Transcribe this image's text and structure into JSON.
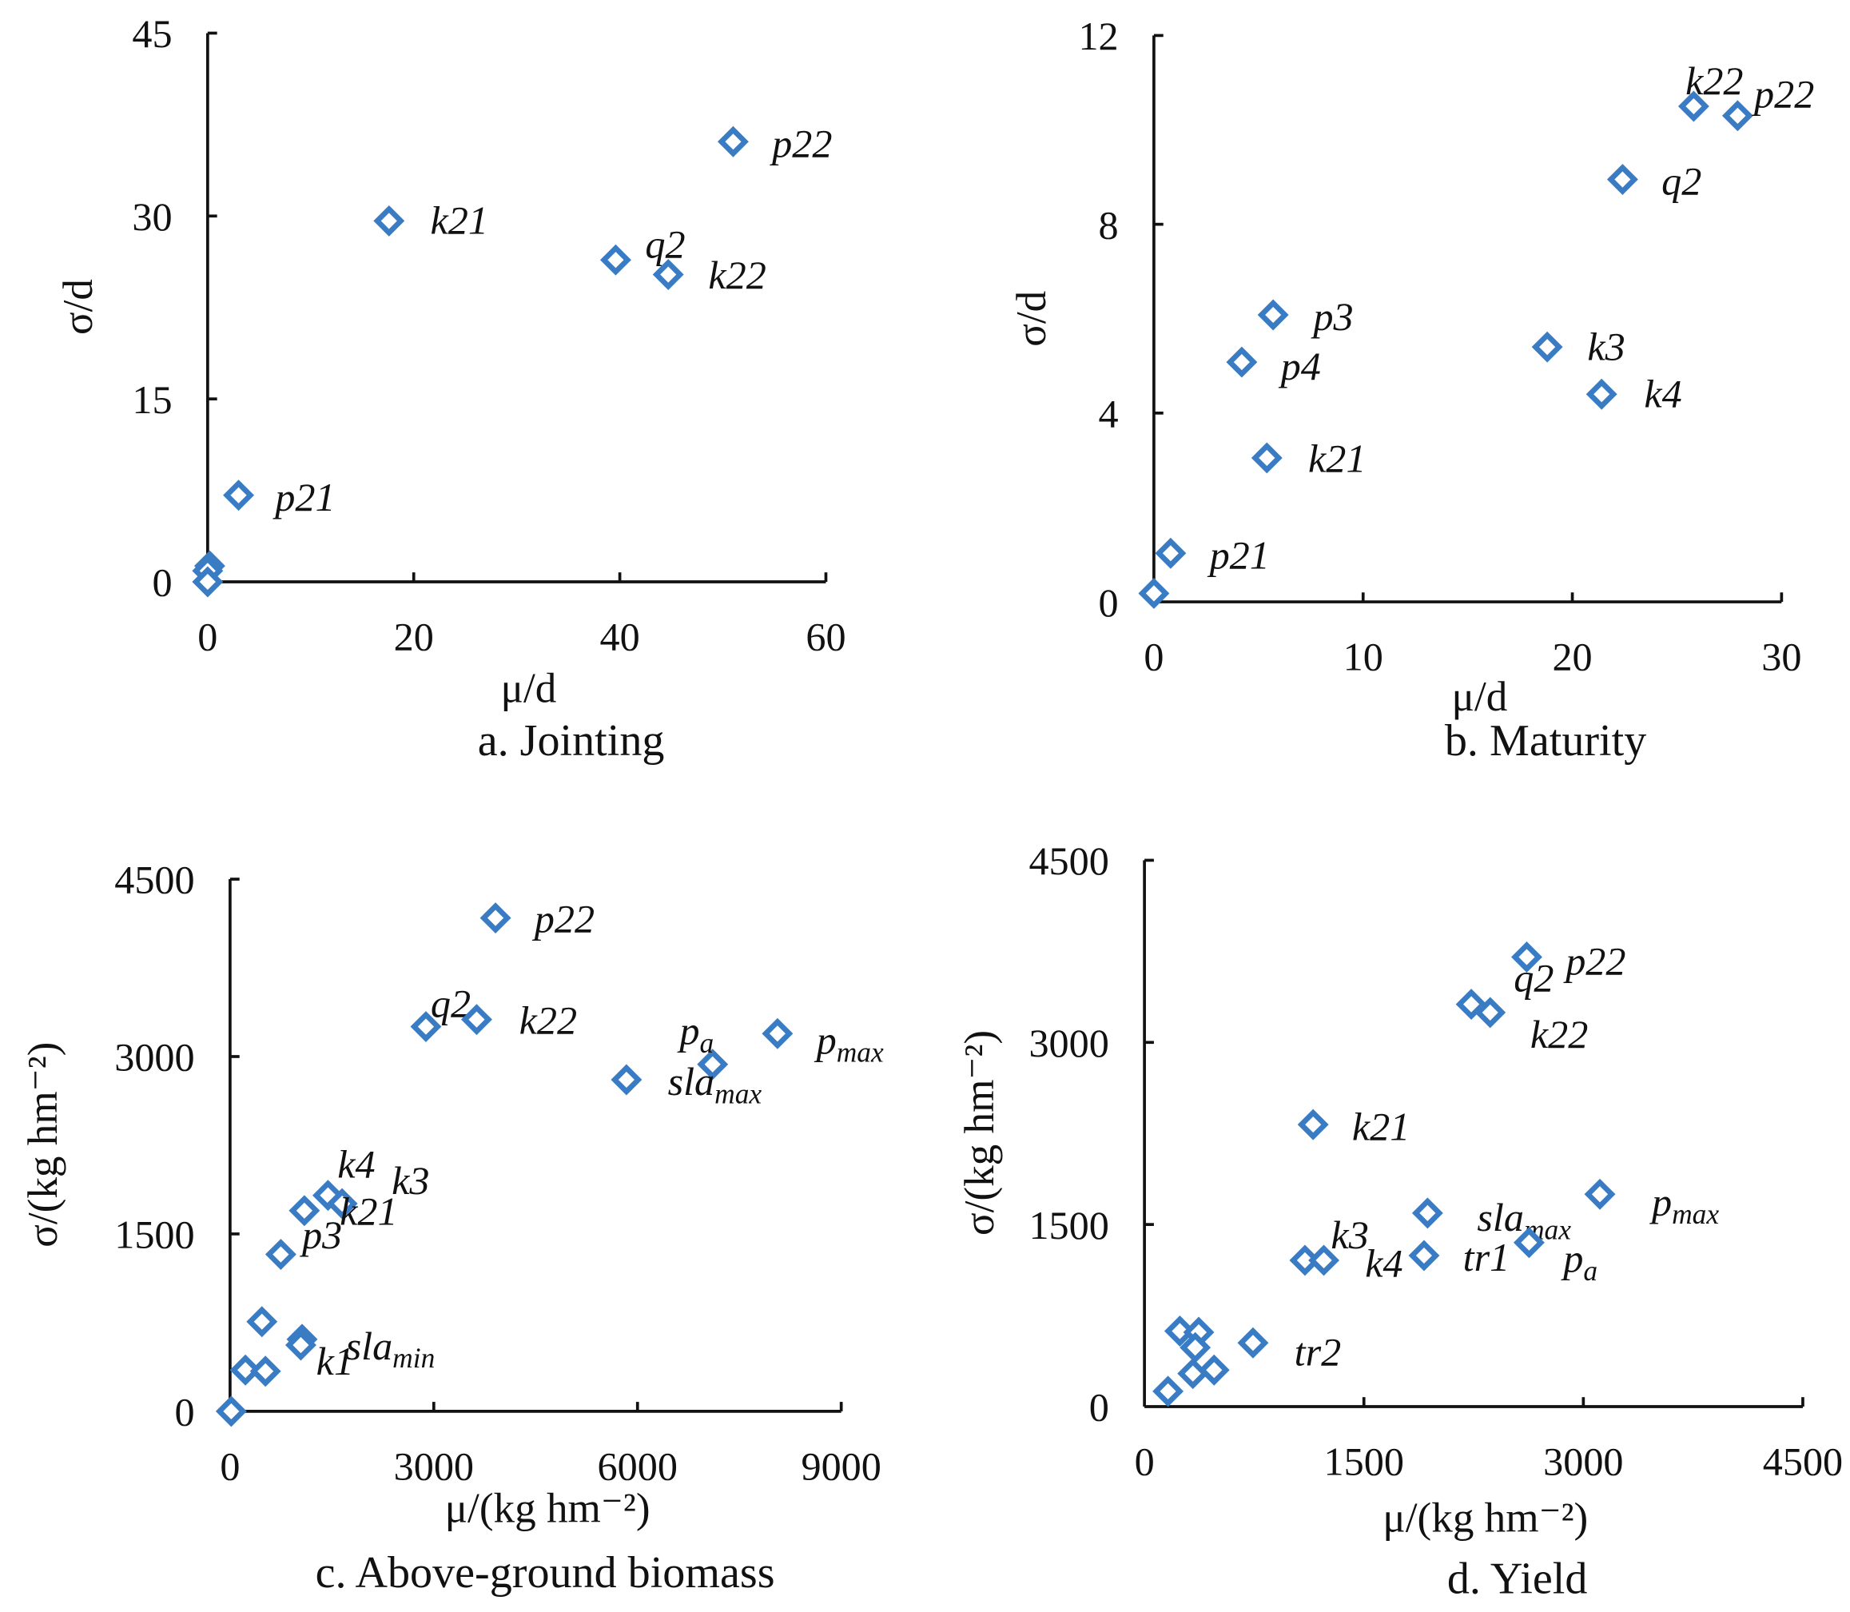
{
  "chart_data": [
    {
      "type": "scatter",
      "caption": "a. Jointing",
      "xlabel": "μ/d",
      "ylabel": "σ/d",
      "xlim": [
        0,
        60
      ],
      "ylim": [
        0,
        45
      ],
      "xticks": [
        "0",
        "20",
        "40",
        "60"
      ],
      "xtick_values": [
        0,
        20,
        40,
        60
      ],
      "yticks": [
        "0",
        "15",
        "30",
        "45"
      ],
      "ytick_values": [
        0,
        15,
        30,
        45
      ],
      "color": "#3a7cc4",
      "points": [
        {
          "x": 51.0,
          "y": 36.1,
          "label": "p22",
          "sub": ""
        },
        {
          "x": 17.6,
          "y": 29.6,
          "label": "k21",
          "sub": ""
        },
        {
          "x": 39.6,
          "y": 26.4,
          "label": "q2",
          "sub": ""
        },
        {
          "x": 44.7,
          "y": 25.2,
          "label": "k22",
          "sub": ""
        },
        {
          "x": 3.0,
          "y": 7.1,
          "label": "p21",
          "sub": ""
        },
        {
          "x": 0.2,
          "y": 1.3,
          "label": "",
          "sub": ""
        },
        {
          "x": 0.0,
          "y": 0.9,
          "label": "",
          "sub": ""
        },
        {
          "x": 0.0,
          "y": 0.0,
          "label": "",
          "sub": ""
        }
      ]
    },
    {
      "type": "scatter",
      "caption": "b. Maturity",
      "xlabel": "μ/d",
      "ylabel": "σ/d",
      "xlim": [
        0,
        30
      ],
      "ylim": [
        0,
        12
      ],
      "xticks": [
        "0",
        "10",
        "20",
        "30"
      ],
      "xtick_values": [
        0,
        10,
        20,
        30
      ],
      "yticks": [
        "0",
        "4",
        "8",
        "12"
      ],
      "ytick_values": [
        0,
        4,
        8,
        12
      ],
      "color": "#3a7cc4",
      "points": [
        {
          "x": 25.8,
          "y": 10.5,
          "label": "k22",
          "sub": ""
        },
        {
          "x": 27.9,
          "y": 10.3,
          "label": "p22",
          "sub": ""
        },
        {
          "x": 22.4,
          "y": 8.95,
          "label": "q2",
          "sub": ""
        },
        {
          "x": 5.7,
          "y": 6.08,
          "label": "p3",
          "sub": ""
        },
        {
          "x": 4.2,
          "y": 5.08,
          "label": "p4",
          "sub": ""
        },
        {
          "x": 18.8,
          "y": 5.4,
          "label": "k3",
          "sub": ""
        },
        {
          "x": 21.4,
          "y": 4.4,
          "label": "k4",
          "sub": ""
        },
        {
          "x": 5.4,
          "y": 3.05,
          "label": "k21",
          "sub": ""
        },
        {
          "x": 0.8,
          "y": 1.03,
          "label": "p21",
          "sub": ""
        },
        {
          "x": 0.0,
          "y": 0.18,
          "label": "",
          "sub": ""
        }
      ]
    },
    {
      "type": "scatter",
      "caption": "c. Above-ground biomass",
      "xlabel": "μ/(kg hm⁻²)",
      "ylabel": "σ/(kg hm⁻²)",
      "xlim": [
        0,
        9000
      ],
      "ylim": [
        0,
        4500
      ],
      "xticks": [
        "0",
        "3000",
        "6000",
        "9000"
      ],
      "xtick_values": [
        0,
        3000,
        6000,
        9000
      ],
      "yticks": [
        "0",
        "1500",
        "3000",
        "4500"
      ],
      "ytick_values": [
        0,
        1500,
        3000,
        4500
      ],
      "color": "#3a7cc4",
      "points": [
        {
          "x": 3909,
          "y": 4172,
          "label": "p22",
          "sub": ""
        },
        {
          "x": 2884,
          "y": 3253,
          "label": "q2",
          "sub": ""
        },
        {
          "x": 3631,
          "y": 3313,
          "label": "k22",
          "sub": ""
        },
        {
          "x": 7106,
          "y": 2934,
          "label": "p",
          "sub": "a"
        },
        {
          "x": 8061,
          "y": 3194,
          "label": "p",
          "sub": "max"
        },
        {
          "x": 5837,
          "y": 2804,
          "label": "sla",
          "sub": "max"
        },
        {
          "x": 1442,
          "y": 1826,
          "label": "k4",
          "sub": ""
        },
        {
          "x": 1650,
          "y": 1756,
          "label": "k3",
          "sub": ""
        },
        {
          "x": 1094,
          "y": 1697,
          "label": "k21",
          "sub": ""
        },
        {
          "x": 747,
          "y": 1327,
          "label": "p3",
          "sub": ""
        },
        {
          "x": 1060,
          "y": 609,
          "label": "sla",
          "sub": "min"
        },
        {
          "x": 1042,
          "y": 560,
          "label": "k1",
          "sub": ""
        },
        {
          "x": 469,
          "y": 758,
          "label": "",
          "sub": ""
        },
        {
          "x": 226,
          "y": 349,
          "label": "",
          "sub": ""
        },
        {
          "x": 521,
          "y": 339,
          "label": "",
          "sub": ""
        },
        {
          "x": 17,
          "y": 0,
          "label": "",
          "sub": ""
        }
      ]
    },
    {
      "type": "scatter",
      "caption": "d. Yield",
      "xlabel": "μ/(kg hm⁻²)",
      "ylabel": "σ/(kg hm⁻²)",
      "xlim": [
        0,
        4500
      ],
      "ylim": [
        0,
        4500
      ],
      "xticks": [
        "0",
        "1500",
        "3000",
        "4500"
      ],
      "xtick_values": [
        0,
        1500,
        3000,
        4500
      ],
      "yticks": [
        "0",
        "1500",
        "3000",
        "4500"
      ],
      "ytick_values": [
        0,
        1500,
        3000,
        4500
      ],
      "color": "#3a7cc4",
      "points": [
        {
          "x": 2613,
          "y": 3703,
          "label": "p22",
          "sub": ""
        },
        {
          "x": 2234,
          "y": 3314,
          "label": "q2",
          "sub": ""
        },
        {
          "x": 2363,
          "y": 3246,
          "label": "k22",
          "sub": ""
        },
        {
          "x": 1153,
          "y": 2323,
          "label": "k21",
          "sub": ""
        },
        {
          "x": 3113,
          "y": 1749,
          "label": "p",
          "sub": "max"
        },
        {
          "x": 1935,
          "y": 1594,
          "label": "sla",
          "sub": "max"
        },
        {
          "x": 2629,
          "y": 1351,
          "label": "p",
          "sub": "a"
        },
        {
          "x": 1911,
          "y": 1244,
          "label": "tr1",
          "sub": ""
        },
        {
          "x": 1097,
          "y": 1205,
          "label": "k3",
          "sub": ""
        },
        {
          "x": 1226,
          "y": 1205,
          "label": "k4",
          "sub": ""
        },
        {
          "x": 742,
          "y": 525,
          "label": "tr2",
          "sub": ""
        },
        {
          "x": 242,
          "y": 622,
          "label": "",
          "sub": ""
        },
        {
          "x": 371,
          "y": 612,
          "label": "",
          "sub": ""
        },
        {
          "x": 347,
          "y": 486,
          "label": "",
          "sub": ""
        },
        {
          "x": 331,
          "y": 272,
          "label": "",
          "sub": ""
        },
        {
          "x": 476,
          "y": 301,
          "label": "",
          "sub": ""
        },
        {
          "x": 161,
          "y": 126,
          "label": "",
          "sub": ""
        }
      ]
    }
  ]
}
